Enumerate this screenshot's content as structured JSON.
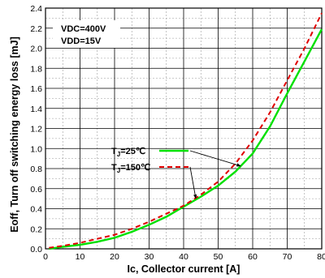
{
  "chart_data": {
    "type": "line",
    "xlabel": "Ic, Collector current [A]",
    "ylabel": "Eoff, Turn off switching energy loss [mJ]",
    "xlim": [
      0,
      80
    ],
    "ylim": [
      0,
      2.4
    ],
    "x_ticks": [
      "0",
      "10",
      "20",
      "30",
      "40",
      "50",
      "60",
      "70",
      "80"
    ],
    "y_ticks": [
      "0.0",
      "0.2",
      "0.4",
      "0.6",
      "0.8",
      "1.0",
      "1.2",
      "1.4",
      "1.6",
      "1.8",
      "2.0",
      "2.2",
      "2.4"
    ],
    "grid": true,
    "conditions": [
      "VDC=400V",
      "VDD=15V"
    ],
    "series": [
      {
        "name": "TJ=25℃",
        "color": "#00e000",
        "style": "solid",
        "x": [
          1,
          5,
          10,
          15,
          20,
          25,
          30,
          35,
          40,
          45,
          50,
          55,
          60,
          65,
          70,
          75,
          80
        ],
        "y": [
          0.0,
          0.02,
          0.04,
          0.07,
          0.11,
          0.17,
          0.24,
          0.32,
          0.42,
          0.52,
          0.63,
          0.77,
          0.95,
          1.22,
          1.55,
          1.87,
          2.19
        ]
      },
      {
        "name": "TJ=150℃",
        "color": "#e00000",
        "style": "dashed",
        "x": [
          1,
          5,
          10,
          15,
          20,
          25,
          30,
          35,
          40,
          45,
          50,
          55,
          60,
          65,
          70,
          75,
          80
        ],
        "y": [
          0.01,
          0.03,
          0.06,
          0.1,
          0.14,
          0.2,
          0.27,
          0.35,
          0.43,
          0.54,
          0.67,
          0.85,
          1.08,
          1.36,
          1.68,
          2.0,
          2.35
        ]
      }
    ]
  }
}
